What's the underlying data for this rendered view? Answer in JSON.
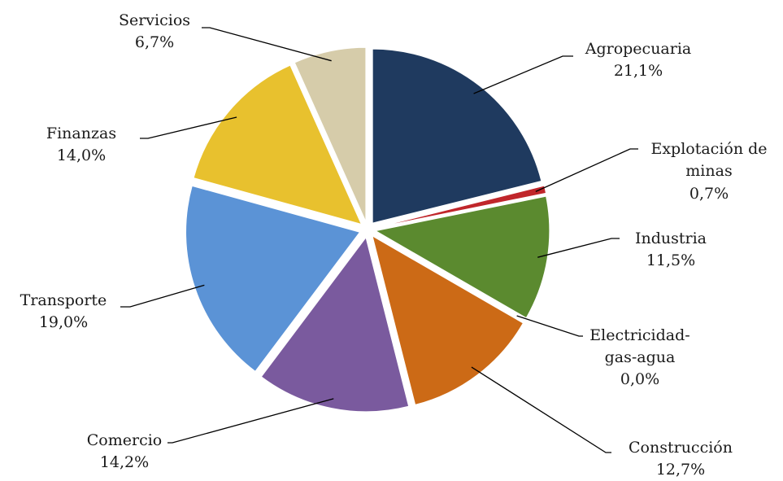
{
  "chart_data": {
    "type": "pie",
    "title": "",
    "slices": [
      {
        "label": "Agropecuaria",
        "value": 21.1,
        "value_label": "21,1%",
        "color": "#1f3a5f"
      },
      {
        "label": "Explotación de minas",
        "value": 0.7,
        "value_label": "0,7%",
        "color": "#c0262b"
      },
      {
        "label": "Industria",
        "value": 11.5,
        "value_label": "11,5%",
        "color": "#5b8a2f"
      },
      {
        "label": "Electricidad-gas-agua",
        "value": 0.0,
        "value_label": "0,0%",
        "color": "#2e2e2e"
      },
      {
        "label": "Construcción",
        "value": 12.7,
        "value_label": "12,7%",
        "color": "#cc6a16"
      },
      {
        "label": "Comercio",
        "value": 14.2,
        "value_label": "14,2%",
        "color": "#7a5a9e"
      },
      {
        "label": "Transporte",
        "value": 19.0,
        "value_label": "19,0%",
        "color": "#5b93d6"
      },
      {
        "label": "Finanzas",
        "value": 14.0,
        "value_label": "14,0%",
        "color": "#e8c12e"
      },
      {
        "label": "Servicios",
        "value": 6.7,
        "value_label": "6,7%",
        "color": "#d6ccaa"
      }
    ]
  }
}
